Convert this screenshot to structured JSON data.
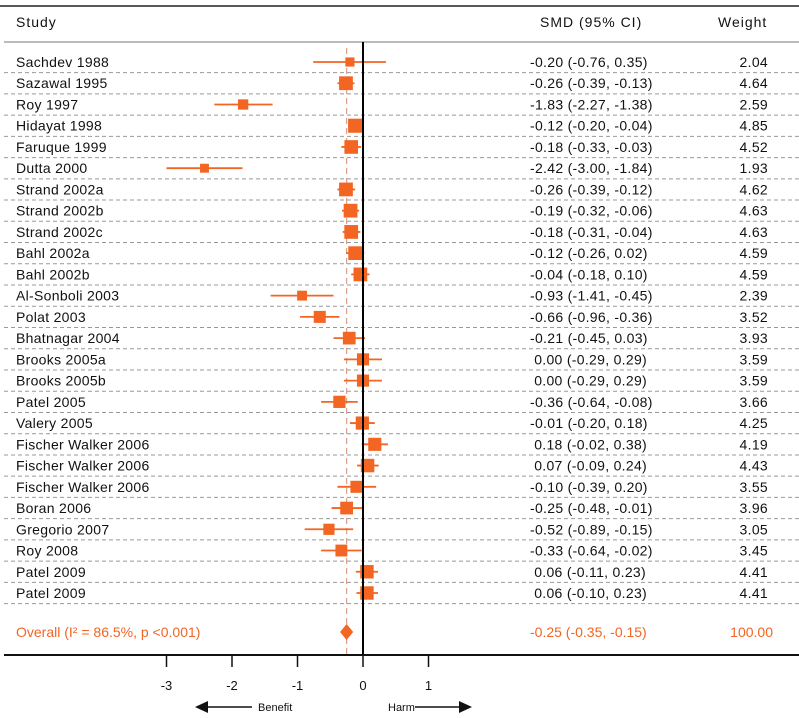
{
  "chart_data": {
    "type": "forest",
    "headers": {
      "study": "Study",
      "ci": "SMD (95% CI)",
      "weight": "Weight"
    },
    "studies": [
      {
        "name": "Sachdev 1988",
        "smd": -0.2,
        "lo": -0.76,
        "hi": 0.35,
        "ci_text": "-0.20 (-0.76, 0.35)",
        "weight": "2.04"
      },
      {
        "name": "Sazawal 1995",
        "smd": -0.26,
        "lo": -0.39,
        "hi": -0.13,
        "ci_text": "-0.26 (-0.39, -0.13)",
        "weight": "4.64"
      },
      {
        "name": "Roy 1997",
        "smd": -1.83,
        "lo": -2.27,
        "hi": -1.38,
        "ci_text": "-1.83 (-2.27, -1.38)",
        "weight": "2.59"
      },
      {
        "name": "Hidayat 1998",
        "smd": -0.12,
        "lo": -0.2,
        "hi": -0.04,
        "ci_text": "-0.12 (-0.20, -0.04)",
        "weight": "4.85"
      },
      {
        "name": "Faruque 1999",
        "smd": -0.18,
        "lo": -0.33,
        "hi": -0.03,
        "ci_text": "-0.18 (-0.33, -0.03)",
        "weight": "4.52"
      },
      {
        "name": "Dutta 2000",
        "smd": -2.42,
        "lo": -3.0,
        "hi": -1.84,
        "ci_text": "-2.42 (-3.00, -1.84)",
        "weight": "1.93"
      },
      {
        "name": "Strand 2002a",
        "smd": -0.26,
        "lo": -0.39,
        "hi": -0.12,
        "ci_text": "-0.26 (-0.39, -0.12)",
        "weight": "4.62"
      },
      {
        "name": "Strand 2002b",
        "smd": -0.19,
        "lo": -0.32,
        "hi": -0.06,
        "ci_text": "-0.19 (-0.32, -0.06)",
        "weight": "4.63"
      },
      {
        "name": "Strand 2002c",
        "smd": -0.18,
        "lo": -0.31,
        "hi": -0.04,
        "ci_text": "-0.18 (-0.31, -0.04)",
        "weight": "4.63"
      },
      {
        "name": "Bahl 2002a",
        "smd": -0.12,
        "lo": -0.26,
        "hi": 0.02,
        "ci_text": "-0.12 (-0.26, 0.02)",
        "weight": "4.59"
      },
      {
        "name": "Bahl 2002b",
        "smd": -0.04,
        "lo": -0.18,
        "hi": 0.1,
        "ci_text": "-0.04 (-0.18, 0.10)",
        "weight": "4.59"
      },
      {
        "name": "Al-Sonboli 2003",
        "smd": -0.93,
        "lo": -1.41,
        "hi": -0.45,
        "ci_text": "-0.93 (-1.41, -0.45)",
        "weight": "2.39"
      },
      {
        "name": "Polat 2003",
        "smd": -0.66,
        "lo": -0.96,
        "hi": -0.36,
        "ci_text": "-0.66 (-0.96, -0.36)",
        "weight": "3.52"
      },
      {
        "name": "Bhatnagar 2004",
        "smd": -0.21,
        "lo": -0.45,
        "hi": 0.03,
        "ci_text": "-0.21 (-0.45, 0.03)",
        "weight": "3.93"
      },
      {
        "name": "Brooks 2005a",
        "smd": 0.0,
        "lo": -0.29,
        "hi": 0.29,
        "ci_text": " 0.00 (-0.29, 0.29)",
        "weight": "3.59"
      },
      {
        "name": "Brooks 2005b",
        "smd": 0.0,
        "lo": -0.29,
        "hi": 0.29,
        "ci_text": " 0.00 (-0.29, 0.29)",
        "weight": "3.59"
      },
      {
        "name": "Patel 2005",
        "smd": -0.36,
        "lo": -0.64,
        "hi": -0.08,
        "ci_text": "-0.36 (-0.64, -0.08)",
        "weight": "3.66"
      },
      {
        "name": "Valery 2005",
        "smd": -0.01,
        "lo": -0.2,
        "hi": 0.18,
        "ci_text": "-0.01 (-0.20, 0.18)",
        "weight": "4.25"
      },
      {
        "name": "Fischer Walker 2006",
        "smd": 0.18,
        "lo": -0.02,
        "hi": 0.38,
        "ci_text": " 0.18 (-0.02, 0.38)",
        "weight": "4.19"
      },
      {
        "name": "Fischer Walker 2006",
        "smd": 0.07,
        "lo": -0.09,
        "hi": 0.24,
        "ci_text": " 0.07 (-0.09, 0.24)",
        "weight": "4.43"
      },
      {
        "name": "Fischer Walker 2006",
        "smd": -0.1,
        "lo": -0.39,
        "hi": 0.2,
        "ci_text": "-0.10 (-0.39, 0.20)",
        "weight": "3.55"
      },
      {
        "name": "Boran 2006",
        "smd": -0.25,
        "lo": -0.48,
        "hi": -0.01,
        "ci_text": "-0.25 (-0.48, -0.01)",
        "weight": "3.96"
      },
      {
        "name": "Gregorio 2007",
        "smd": -0.52,
        "lo": -0.89,
        "hi": -0.15,
        "ci_text": "-0.52 (-0.89, -0.15)",
        "weight": "3.05"
      },
      {
        "name": "Roy 2008",
        "smd": -0.33,
        "lo": -0.64,
        "hi": -0.02,
        "ci_text": "-0.33 (-0.64, -0.02)",
        "weight": "3.45"
      },
      {
        "name": "Patel 2009",
        "smd": 0.06,
        "lo": -0.11,
        "hi": 0.23,
        "ci_text": " 0.06 (-0.11, 0.23)",
        "weight": "4.41"
      },
      {
        "name": "Patel 2009",
        "smd": 0.06,
        "lo": -0.1,
        "hi": 0.23,
        "ci_text": " 0.06 (-0.10, 0.23)",
        "weight": "4.41"
      }
    ],
    "overall": {
      "label": "Overall  (I² = 86.5%, p <0.001)",
      "smd": -0.25,
      "lo": -0.35,
      "hi": -0.15,
      "ci_text": "-0.25 (-0.35, -0.15)",
      "weight": "100.00"
    },
    "x_ticks": [
      -3,
      -2,
      -1,
      0,
      1
    ],
    "x_tick_labels": [
      "-3",
      "-2",
      "-1",
      "0",
      "1"
    ],
    "xlim": [
      -3.5,
      1.5
    ],
    "direction_labels": {
      "left": "Benefit",
      "right": "Harm"
    },
    "colors": {
      "marker": "#f26522",
      "overall": "#f26522",
      "reference": "#000000",
      "separator": "#999999"
    }
  }
}
